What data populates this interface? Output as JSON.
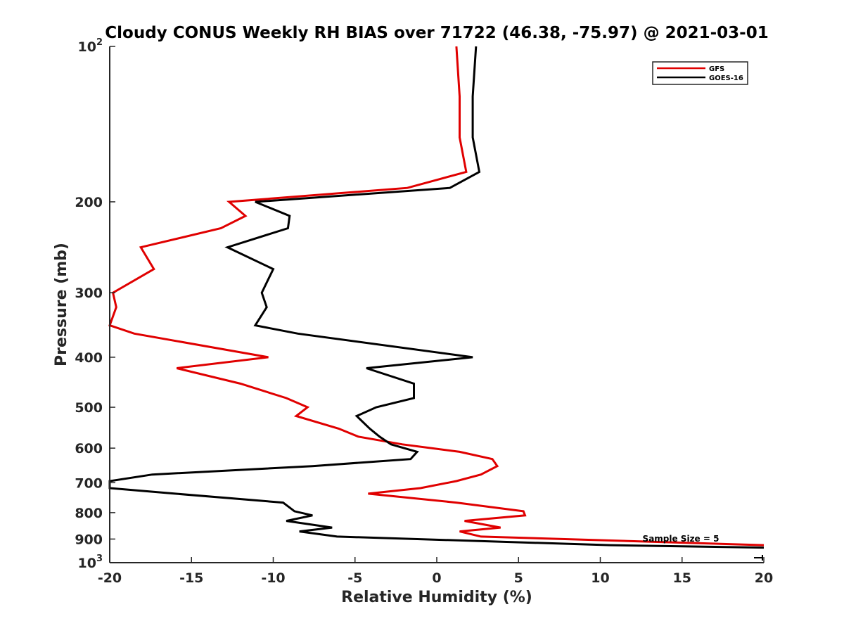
{
  "chart_data": {
    "type": "line",
    "title": "Cloudy CONUS Weekly RH BIAS over 71722 (46.38, -75.97) @ 2021-03-01",
    "xlabel": "Relative Humidity (%)",
    "ylabel": "Pressure (mb)",
    "xlim": [
      -20,
      20
    ],
    "ylim": [
      100,
      1000
    ],
    "y_scale": "log",
    "y_reversed": true,
    "x_ticks": [
      -20,
      -15,
      -10,
      -5,
      0,
      5,
      10,
      15,
      20
    ],
    "x_tick_labels": [
      "-20",
      "-15",
      "-10",
      "-5",
      "0",
      "5",
      "10",
      "15",
      "20"
    ],
    "y_ticks": [
      {
        "value": 100,
        "base": "10",
        "exp": "2"
      },
      {
        "value": 200,
        "label": "200"
      },
      {
        "value": 300,
        "label": "300"
      },
      {
        "value": 400,
        "label": "400"
      },
      {
        "value": 500,
        "label": "500"
      },
      {
        "value": 600,
        "label": "600"
      },
      {
        "value": 700,
        "label": "700"
      },
      {
        "value": 800,
        "label": "800"
      },
      {
        "value": 900,
        "label": "900"
      },
      {
        "value": 1000,
        "base": "10",
        "exp": "3"
      }
    ],
    "legend_position": "top-right",
    "annotation": "Sample Size = 5",
    "series": [
      {
        "name": "GFS",
        "color": "#e00000",
        "points": [
          [
            1.2,
            100
          ],
          [
            1.4,
            125
          ],
          [
            1.4,
            150
          ],
          [
            1.8,
            175
          ],
          [
            -1.8,
            188
          ],
          [
            -12.7,
            200
          ],
          [
            -11.7,
            213
          ],
          [
            -13.2,
            225
          ],
          [
            -18.1,
            245
          ],
          [
            -17.3,
            270
          ],
          [
            -19.8,
            300
          ],
          [
            -19.6,
            320
          ],
          [
            -20,
            347
          ],
          [
            -18.5,
            360
          ],
          [
            -10.3,
            400
          ],
          [
            -15.9,
            420
          ],
          [
            -12,
            450
          ],
          [
            -9.2,
            480
          ],
          [
            -7.9,
            500
          ],
          [
            -8.6,
            520
          ],
          [
            -6,
            550
          ],
          [
            -4.8,
            570
          ],
          [
            -2.1,
            590
          ],
          [
            1.4,
            610
          ],
          [
            3.4,
            630
          ],
          [
            3.7,
            650
          ],
          [
            2.7,
            675
          ],
          [
            1.2,
            695
          ],
          [
            -1,
            717
          ],
          [
            -4.2,
            735
          ],
          [
            1.2,
            765
          ],
          [
            5.3,
            795
          ],
          [
            5.4,
            810
          ],
          [
            1.7,
            830
          ],
          [
            3.9,
            855
          ],
          [
            1.4,
            870
          ],
          [
            2.7,
            890
          ],
          [
            20,
            925
          ]
        ]
      },
      {
        "name": "GOES-16",
        "color": "#000000",
        "points": [
          [
            2.4,
            100
          ],
          [
            2.2,
            125
          ],
          [
            2.2,
            150
          ],
          [
            2.6,
            175
          ],
          [
            0.8,
            188
          ],
          [
            -11.1,
            200
          ],
          [
            -9,
            213
          ],
          [
            -9.1,
            225
          ],
          [
            -12.8,
            245
          ],
          [
            -10,
            270
          ],
          [
            -10.7,
            300
          ],
          [
            -10.4,
            320
          ],
          [
            -11.1,
            347
          ],
          [
            -8.5,
            360
          ],
          [
            2.2,
            400
          ],
          [
            -4.3,
            420
          ],
          [
            -1.4,
            450
          ],
          [
            -1.4,
            480
          ],
          [
            -3.7,
            500
          ],
          [
            -4.9,
            520
          ],
          [
            -4.1,
            550
          ],
          [
            -3.5,
            570
          ],
          [
            -2.8,
            590
          ],
          [
            -1.2,
            610
          ],
          [
            -1.6,
            630
          ],
          [
            -7.6,
            650
          ],
          [
            -17.4,
            675
          ],
          [
            -20,
            695
          ],
          [
            -20,
            717
          ],
          [
            -16,
            735
          ],
          [
            -9.4,
            765
          ],
          [
            -8.7,
            795
          ],
          [
            -7.6,
            810
          ],
          [
            -9.2,
            830
          ],
          [
            -6.4,
            855
          ],
          [
            -8.4,
            870
          ],
          [
            -6.1,
            890
          ],
          [
            10.6,
            925
          ],
          [
            20,
            935
          ]
        ]
      }
    ]
  }
}
